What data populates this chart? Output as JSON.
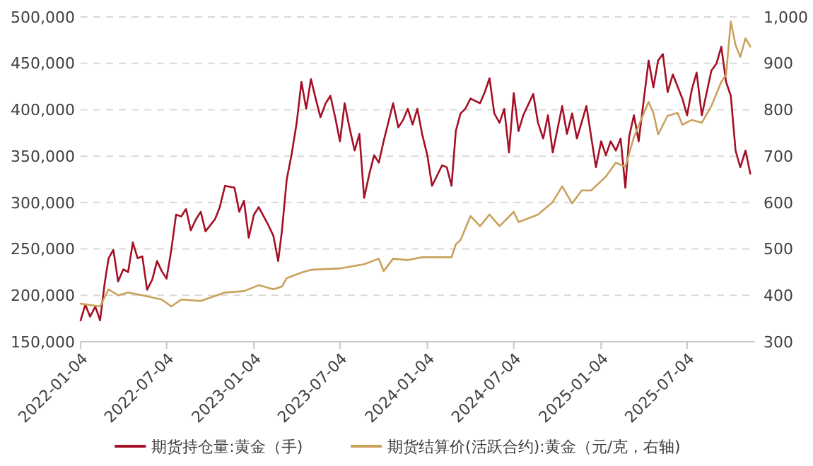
{
  "chart_data": {
    "type": "line",
    "xlim": [
      "2022-01-04",
      "2025-11-24"
    ],
    "xticks": [
      "2022-01-04",
      "2022-07-04",
      "2023-01-04",
      "2023-07-04",
      "2024-01-04",
      "2024-07-04",
      "2025-01-04",
      "2025-07-04"
    ],
    "ylim": [
      150000,
      500000
    ],
    "yticks": [
      {
        "value": 150000,
        "label": "150,000"
      },
      {
        "value": 200000,
        "label": "200,000"
      },
      {
        "value": 250000,
        "label": "250,000"
      },
      {
        "value": 300000,
        "label": "300,000"
      },
      {
        "value": 350000,
        "label": "350,000"
      },
      {
        "value": 400000,
        "label": "400,000"
      },
      {
        "value": 450000,
        "label": "450,000"
      },
      {
        "value": 500000,
        "label": "500,000"
      }
    ],
    "y2lim": [
      300,
      1000
    ],
    "y2ticks": [
      300,
      400,
      500,
      600,
      700,
      800,
      900,
      {
        "value": 1000,
        "label": "1,000"
      }
    ],
    "grid": "y",
    "legend": "bottom",
    "series": [
      {
        "name": "期货持仓量:黄金（手)",
        "color": "#a50f25",
        "x": [
          "2022-01-04",
          "2022-01-14",
          "2022-01-24",
          "2022-02-04",
          "2022-02-14",
          "2022-02-24",
          "2022-03-04",
          "2022-03-14",
          "2022-03-24",
          "2022-04-04",
          "2022-04-14",
          "2022-04-24",
          "2022-05-04",
          "2022-05-14",
          "2022-05-24",
          "2022-06-04",
          "2022-06-14",
          "2022-06-24",
          "2022-07-04",
          "2022-07-14",
          "2022-07-24",
          "2022-08-04",
          "2022-08-14",
          "2022-08-24",
          "2022-09-04",
          "2022-09-14",
          "2022-09-24",
          "2022-10-14",
          "2022-10-24",
          "2022-11-04",
          "2022-11-24",
          "2022-12-04",
          "2022-12-14",
          "2022-12-24",
          "2023-01-04",
          "2023-01-14",
          "2023-02-04",
          "2023-02-14",
          "2023-02-24",
          "2023-03-04",
          "2023-03-14",
          "2023-03-24",
          "2023-04-04",
          "2023-04-14",
          "2023-04-24",
          "2023-05-04",
          "2023-05-14",
          "2023-05-24",
          "2023-06-04",
          "2023-06-14",
          "2023-06-24",
          "2023-07-04",
          "2023-07-14",
          "2023-07-24",
          "2023-08-04",
          "2023-08-14",
          "2023-08-24",
          "2023-09-04",
          "2023-09-14",
          "2023-09-24",
          "2023-10-04",
          "2023-10-24",
          "2023-11-04",
          "2023-11-14",
          "2023-11-24",
          "2023-12-04",
          "2023-12-14",
          "2023-12-24",
          "2024-01-04",
          "2024-01-14",
          "2024-02-04",
          "2024-02-14",
          "2024-02-24",
          "2024-03-04",
          "2024-03-14",
          "2024-03-24",
          "2024-04-04",
          "2024-04-24",
          "2024-05-04",
          "2024-05-14",
          "2024-05-24",
          "2024-06-04",
          "2024-06-14",
          "2024-06-24",
          "2024-07-04",
          "2024-07-14",
          "2024-07-24",
          "2024-08-14",
          "2024-08-24",
          "2024-09-04",
          "2024-09-14",
          "2024-09-24",
          "2024-10-14",
          "2024-10-24",
          "2024-11-04",
          "2024-11-14",
          "2024-12-04",
          "2024-12-14",
          "2024-12-24",
          "2025-01-04",
          "2025-01-14",
          "2025-01-24",
          "2025-02-04",
          "2025-02-14",
          "2025-02-24",
          "2025-03-04",
          "2025-03-14",
          "2025-03-24",
          "2025-04-14",
          "2025-04-24",
          "2025-05-04",
          "2025-05-14",
          "2025-05-24",
          "2025-06-04",
          "2025-06-24",
          "2025-07-04",
          "2025-07-14",
          "2025-07-24",
          "2025-08-04",
          "2025-08-24",
          "2025-09-04",
          "2025-09-14",
          "2025-09-24",
          "2025-10-04",
          "2025-10-14",
          "2025-10-24",
          "2025-11-04",
          "2025-11-14"
        ],
        "values": [
          173000,
          190000,
          177000,
          188000,
          173000,
          214000,
          240000,
          249000,
          215000,
          228000,
          225000,
          257000,
          240000,
          242000,
          206000,
          217000,
          237000,
          226000,
          218000,
          249000,
          287000,
          285000,
          293000,
          270000,
          282000,
          290000,
          269000,
          282000,
          295000,
          318000,
          316000,
          290000,
          302000,
          262000,
          287000,
          295000,
          275000,
          264000,
          237000,
          270000,
          325000,
          351000,
          386000,
          430000,
          401000,
          433000,
          412000,
          392000,
          407000,
          415000,
          392000,
          366000,
          407000,
          381000,
          356000,
          374000,
          305000,
          331000,
          351000,
          343000,
          366000,
          407000,
          381000,
          389000,
          401000,
          384000,
          401000,
          374000,
          351000,
          318000,
          340000,
          338000,
          318000,
          377000,
          396000,
          401000,
          412000,
          407000,
          419000,
          434000,
          396000,
          386000,
          401000,
          354000,
          418000,
          377000,
          394000,
          417000,
          386000,
          369000,
          394000,
          354000,
          404000,
          374000,
          396000,
          369000,
          404000,
          371000,
          338000,
          366000,
          351000,
          366000,
          356000,
          369000,
          316000,
          371000,
          394000,
          366000,
          453000,
          424000,
          453000,
          460000,
          419000,
          438000,
          412000,
          394000,
          422000,
          440000,
          394000,
          442000,
          450000,
          468000,
          430000,
          415000,
          356000,
          338000,
          356000,
          331000
        ]
      },
      {
        "name": "期货结算价(活跃合约):黄金（元/克，右轴)",
        "color": "#c9a15c",
        "axis": "y2",
        "x": [
          "2022-01-04",
          "2022-02-14",
          "2022-03-04",
          "2022-03-24",
          "2022-04-14",
          "2022-05-14",
          "2022-06-24",
          "2022-07-14",
          "2022-08-04",
          "2022-09-14",
          "2022-11-04",
          "2022-12-14",
          "2023-01-14",
          "2023-02-14",
          "2023-03-04",
          "2023-03-14",
          "2023-04-14",
          "2023-05-04",
          "2023-07-04",
          "2023-08-24",
          "2023-09-24",
          "2023-10-04",
          "2023-10-24",
          "2023-11-24",
          "2023-12-24",
          "2024-02-24",
          "2024-03-04",
          "2024-03-14",
          "2024-04-04",
          "2024-04-24",
          "2024-05-14",
          "2024-06-04",
          "2024-07-04",
          "2024-07-14",
          "2024-08-24",
          "2024-09-24",
          "2024-10-14",
          "2024-11-04",
          "2024-11-24",
          "2024-12-14",
          "2025-01-14",
          "2025-02-04",
          "2025-02-24",
          "2025-03-14",
          "2025-04-04",
          "2025-04-14",
          "2025-04-24",
          "2025-05-04",
          "2025-05-24",
          "2025-06-14",
          "2025-06-24",
          "2025-07-14",
          "2025-08-04",
          "2025-08-24",
          "2025-09-14",
          "2025-09-24",
          "2025-10-04",
          "2025-10-14",
          "2025-10-24",
          "2025-11-04",
          "2025-11-14"
        ],
        "values": [
          382,
          376,
          413,
          400,
          406,
          400,
          391,
          376,
          391,
          388,
          406,
          409,
          422,
          413,
          419,
          437,
          449,
          455,
          458,
          467,
          479,
          452,
          479,
          476,
          482,
          482,
          510,
          519,
          571,
          549,
          574,
          549,
          580,
          558,
          574,
          601,
          635,
          598,
          626,
          626,
          656,
          686,
          677,
          741,
          793,
          817,
          793,
          747,
          787,
          793,
          768,
          778,
          772,
          808,
          860,
          875,
          990,
          939,
          914,
          954,
          936
        ]
      }
    ]
  }
}
